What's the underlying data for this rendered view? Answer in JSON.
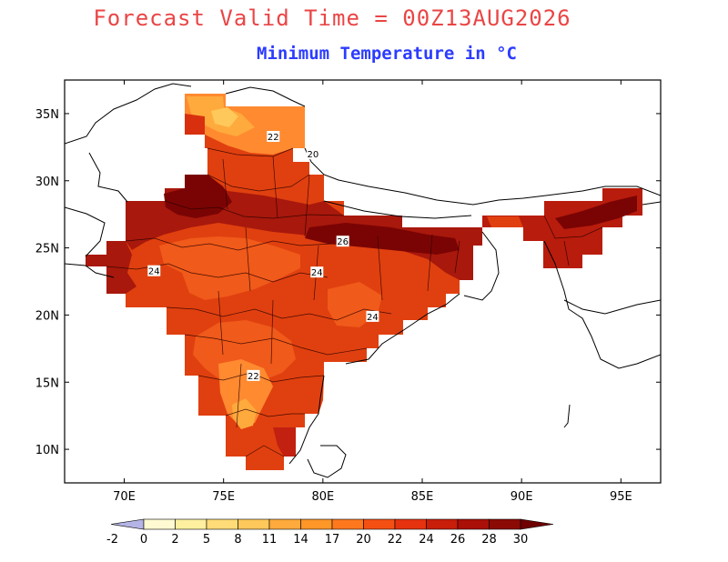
{
  "titles": {
    "main": "Forecast Valid Time = 00Z13AUG2026",
    "subtitle": "Minimum Temperature in °C"
  },
  "colors": {
    "main_title": "#ea4545",
    "subtitle": "#2c3cff",
    "frame": "#000000"
  },
  "map": {
    "lon_range": [
      67,
      97
    ],
    "lat_range": [
      7.5,
      37.5
    ],
    "x_ticks": [
      70,
      75,
      80,
      85,
      90,
      95
    ],
    "y_ticks": [
      10,
      15,
      20,
      25,
      30,
      35
    ],
    "x_tick_labels": [
      "70E",
      "75E",
      "80E",
      "85E",
      "90E",
      "95E"
    ],
    "y_tick_labels": [
      "10N",
      "15N",
      "20N",
      "25N",
      "30N",
      "35N"
    ],
    "contour_labels": [
      {
        "text": "22",
        "lon": 77.5,
        "lat": 33.3
      },
      {
        "text": "20",
        "lon": 79.5,
        "lat": 32.0
      },
      {
        "text": "26",
        "lon": 81.0,
        "lat": 25.5
      },
      {
        "text": "24",
        "lon": 71.5,
        "lat": 23.3
      },
      {
        "text": "24",
        "lon": 79.7,
        "lat": 23.2
      },
      {
        "text": "24",
        "lon": 82.5,
        "lat": 19.9
      },
      {
        "text": "22",
        "lon": 76.5,
        "lat": 15.5
      }
    ]
  },
  "colorbar": {
    "labels": [
      "-2",
      "0",
      "2",
      "5",
      "8",
      "11",
      "14",
      "17",
      "20",
      "22",
      "24",
      "26",
      "28",
      "30"
    ],
    "colors": [
      "#b4b4e6",
      "#fffad2",
      "#fff0a0",
      "#ffdc78",
      "#ffc85a",
      "#ffaa3c",
      "#ff9628",
      "#ff781e",
      "#f55014",
      "#e6320f",
      "#c81e0a",
      "#aa0f08",
      "#8c0a05",
      "#6e0000"
    ]
  }
}
